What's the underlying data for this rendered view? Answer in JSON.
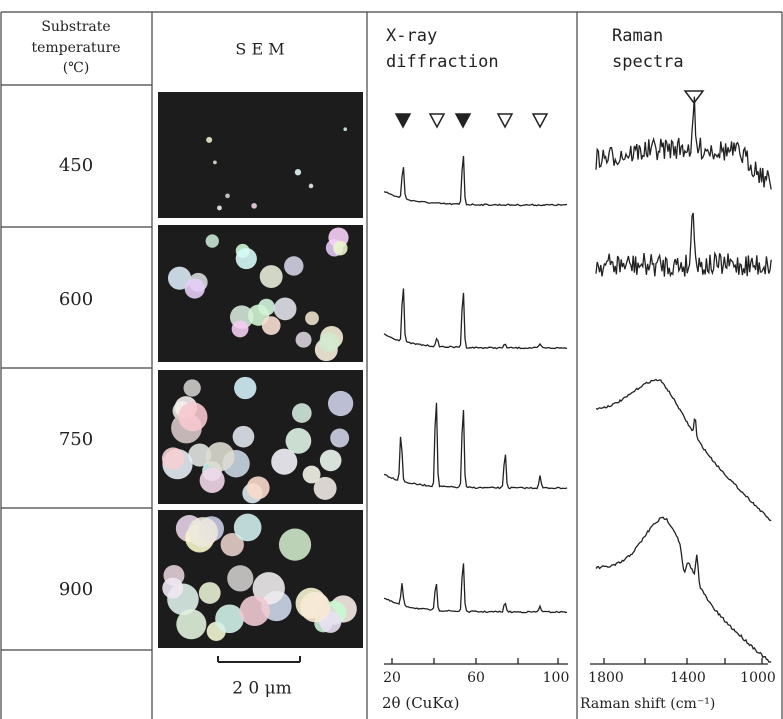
{
  "header": {
    "temperature": [
      "Substrate",
      "temperature",
      "(℃)"
    ],
    "sem": "S E M",
    "xrd": [
      "X-ray",
      "diffraction"
    ],
    "raman": [
      "Raman",
      "spectra"
    ]
  },
  "rows": [
    "450",
    "600",
    "750",
    "900"
  ],
  "footer": {
    "scale_bar": "2 0 μm",
    "xrd_ticks": [
      "20",
      "60",
      "100"
    ],
    "xrd_axis_label": "2θ  (CuKα)",
    "raman_ticks": [
      "1800",
      "1400",
      "1000"
    ],
    "raman_axis_label": "Raman shift (cm⁻¹)"
  }
}
